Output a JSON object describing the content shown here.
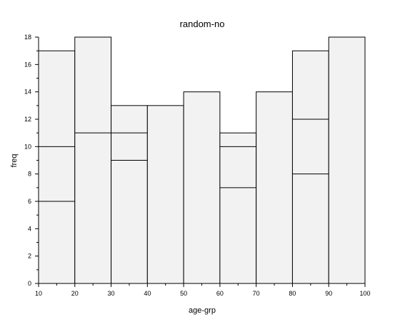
{
  "chart_data": {
    "type": "bar",
    "title": "random-no",
    "xlabel": "age-grp",
    "ylabel": "freq",
    "xlim": [
      10,
      100
    ],
    "ylim": [
      0,
      18
    ],
    "grid": false,
    "x_ticks": [
      10,
      20,
      30,
      40,
      50,
      60,
      70,
      80,
      90,
      100
    ],
    "y_ticks": [
      0,
      2,
      4,
      6,
      8,
      10,
      12,
      14,
      16,
      18
    ],
    "bars": [
      {
        "x0": 10,
        "x1": 20,
        "values": [
          6,
          10,
          17
        ]
      },
      {
        "x0": 20,
        "x1": 30,
        "values": [
          11,
          18
        ]
      },
      {
        "x0": 30,
        "x1": 40,
        "values": [
          9,
          11,
          13
        ]
      },
      {
        "x0": 40,
        "x1": 50,
        "values": [
          13
        ]
      },
      {
        "x0": 50,
        "x1": 60,
        "values": [
          14
        ]
      },
      {
        "x0": 60,
        "x1": 70,
        "values": [
          7,
          10,
          11
        ]
      },
      {
        "x0": 70,
        "x1": 80,
        "values": [
          14
        ]
      },
      {
        "x0": 80,
        "x1": 90,
        "values": [
          8,
          12,
          17
        ]
      },
      {
        "x0": 90,
        "x1": 100,
        "values": [
          18
        ]
      }
    ],
    "colors": {
      "bar_fill": "#f2f2f2",
      "edge": "#000000"
    }
  }
}
